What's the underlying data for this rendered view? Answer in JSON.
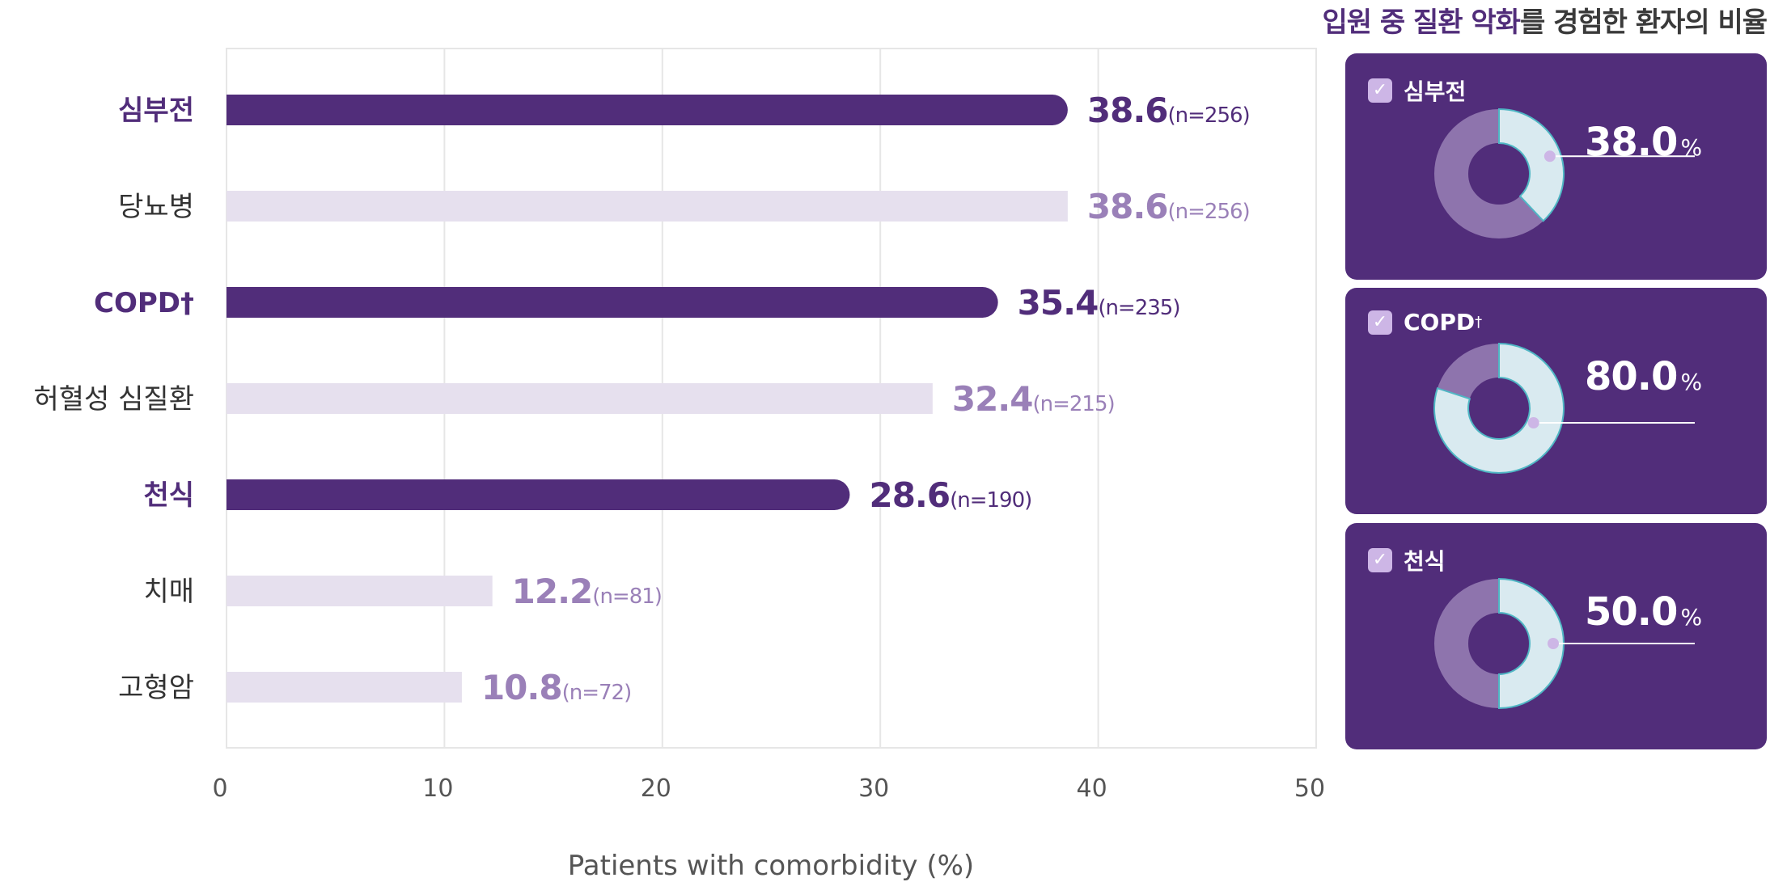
{
  "panel": {
    "title_highlight": "입원 중 질환 악화",
    "title_rest": "를 경험한 환자의 비율",
    "check_glyph": "✓",
    "percent_sign": "%",
    "cards": [
      {
        "label": "심부전",
        "sup": "",
        "value": 38.0,
        "value_text": "38.0"
      },
      {
        "label": "COPD",
        "sup": "†",
        "value": 80.0,
        "value_text": "80.0"
      },
      {
        "label": "천식",
        "sup": "",
        "value": 50.0,
        "value_text": "50.0"
      }
    ],
    "colors": {
      "card": "#512d7a",
      "ring_fill": "#d9eaf0",
      "ring_stroke": "#4fb6c4",
      "ring_rest": "#8e74ad",
      "dot": "#cdb6e6",
      "check": "#cdb6e6"
    }
  },
  "chart_data": {
    "type": "bar",
    "orientation": "horizontal",
    "categories": [
      "심부전",
      "당뇨병",
      "COPD†",
      "허혈성 심질환",
      "천식",
      "치매",
      "고형암"
    ],
    "values": [
      38.6,
      38.6,
      35.4,
      32.4,
      28.6,
      12.2,
      10.8
    ],
    "value_labels": [
      "38.6",
      "38.6",
      "35.4",
      "32.4",
      "28.6",
      "12.2",
      "10.8"
    ],
    "n_labels": [
      "(n=256)",
      "(n=256)",
      "(n=235)",
      "(n=215)",
      "(n=190)",
      "(n=81)",
      "(n=72)"
    ],
    "highlighted": [
      true,
      false,
      true,
      false,
      true,
      false,
      false
    ],
    "xlabel": "Patients with comorbidity (%)",
    "ylabel": "",
    "xlim": [
      0,
      50
    ],
    "xticks": [
      0,
      10,
      20,
      30,
      40,
      50
    ],
    "grid": true,
    "colors": {
      "highlight": "#512d7a",
      "muted_bar": "#e6e0ee",
      "muted_text": "#9a80b8",
      "category_text": "#333333",
      "grid": "#e6e6e6",
      "axis_text": "#555555"
    }
  }
}
